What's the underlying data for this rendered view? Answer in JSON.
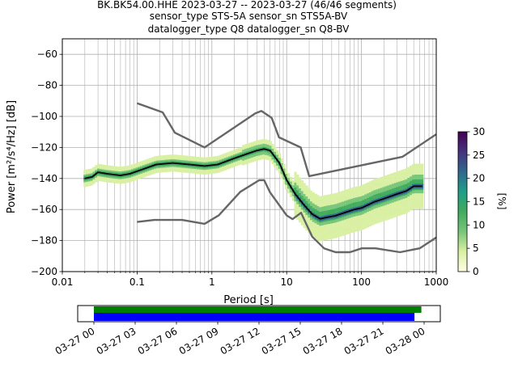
{
  "title": {
    "line1": "BK.BK54.00.HHE   2023-03-27 -- 2023-03-27  (46/46 segments)",
    "line2": "sensor_type STS-5A sensor_sn STS5A-BV",
    "line3": "datalogger_type Q8 datalogger_sn Q8-BV"
  },
  "chart_data": [
    {
      "type": "heatmap",
      "xlabel": "Period [s]",
      "ylabel": "Power [m²/s⁴/Hz] [dB]",
      "xscale": "log",
      "xlim": [
        0.01,
        1000
      ],
      "ylim": [
        -200,
        -50
      ],
      "xticks": [
        0.01,
        0.1,
        1,
        10,
        100,
        1000
      ],
      "xtick_labels": [
        "0.01",
        "0.1",
        "1",
        "10",
        "100",
        "1000"
      ],
      "yticks": [
        -200,
        -180,
        -160,
        -140,
        -120,
        -100,
        -80,
        -60
      ],
      "grid": true,
      "colorbar": {
        "label": "[%]",
        "range": [
          0,
          30
        ],
        "ticks": [
          0,
          5,
          10,
          15,
          20,
          25,
          30
        ],
        "colors": [
          "#ffffe5",
          "#d9f0a3",
          "#78c679",
          "#41ab5d",
          "#1f9e89",
          "#31688e",
          "#46327e",
          "#440154"
        ]
      },
      "series": [
        {
          "role": "noise-model-high",
          "color": "#666666",
          "x": [
            0.1,
            0.22,
            0.32,
            0.8,
            3.8,
            4.6,
            6.3,
            7.9,
            15.4,
            20,
            354.8,
            1000
          ],
          "y": [
            -91.5,
            -97.4,
            -110.5,
            -120,
            -98,
            -96.5,
            -101,
            -113.5,
            -120,
            -138.5,
            -126,
            -111.5
          ]
        },
        {
          "role": "noise-model-low",
          "color": "#666666",
          "x": [
            0.1,
            0.17,
            0.4,
            0.8,
            1.24,
            2.4,
            4.3,
            5,
            6,
            10,
            12,
            15.6,
            21.9,
            31.6,
            45,
            70,
            101,
            154,
            328,
            600,
            1000
          ],
          "y": [
            -168,
            -166.7,
            -166.7,
            -169.2,
            -163.7,
            -148.6,
            -141.1,
            -141.1,
            -149,
            -163.8,
            -166.2,
            -162.1,
            -177.5,
            -185,
            -187.5,
            -187.5,
            -185,
            -185,
            -187.5,
            -185,
            -178
          ]
        },
        {
          "role": "mode",
          "color": "#000000",
          "x": [
            0.02,
            0.025,
            0.03,
            0.04,
            0.06,
            0.08,
            0.12,
            0.18,
            0.3,
            0.5,
            0.8,
            1.2,
            2,
            3,
            4,
            5,
            6,
            8,
            10,
            13,
            17,
            22,
            28,
            35,
            45,
            60,
            80,
            100,
            150,
            200,
            300,
            400,
            500,
            650
          ],
          "y": [
            -140,
            -139,
            -136,
            -137,
            -138,
            -137,
            -134,
            -131,
            -130,
            -131,
            -132,
            -131,
            -127,
            -124,
            -122,
            -121,
            -122,
            -130,
            -141,
            -150,
            -157,
            -163,
            -166,
            -165,
            -164,
            -162,
            -160,
            -159,
            -155,
            -153,
            -150,
            -148,
            -145,
            -145
          ]
        }
      ]
    },
    {
      "type": "timeline",
      "xlim": [
        "2023-03-27 00",
        "2023-03-28 00"
      ],
      "xtick_labels": [
        "03-27 00",
        "03-27 03",
        "03-27 06",
        "03-27 09",
        "03-27 12",
        "03-27 15",
        "03-27 18",
        "03-27 21",
        "03-28 00"
      ],
      "bars": [
        {
          "color": "#008000",
          "start_hours": 0.0,
          "end_hours": 23.8
        },
        {
          "color": "#0000ff",
          "start_hours": 0.0,
          "end_hours": 23.3
        }
      ]
    }
  ]
}
